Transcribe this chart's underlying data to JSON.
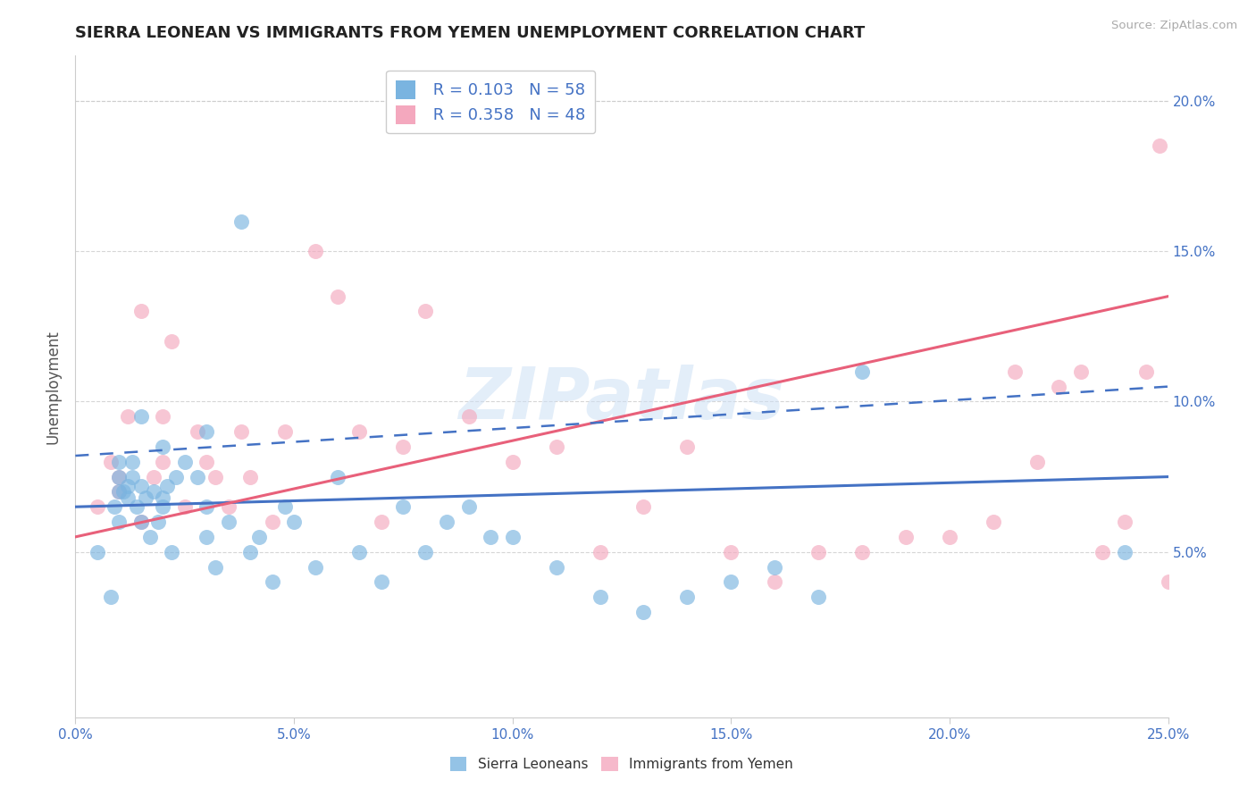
{
  "title": "SIERRA LEONEAN VS IMMIGRANTS FROM YEMEN UNEMPLOYMENT CORRELATION CHART",
  "source": "Source: ZipAtlas.com",
  "ylabel": "Unemployment",
  "xlim": [
    0.0,
    0.25
  ],
  "ylim": [
    -0.005,
    0.215
  ],
  "xticks": [
    0.0,
    0.05,
    0.1,
    0.15,
    0.2,
    0.25
  ],
  "xtick_labels": [
    "0.0%",
    "5.0%",
    "10.0%",
    "15.0%",
    "20.0%",
    "25.0%"
  ],
  "yticks": [
    0.05,
    0.1,
    0.15,
    0.2
  ],
  "ytick_labels": [
    "5.0%",
    "10.0%",
    "15.0%",
    "20.0%"
  ],
  "blue_color": "#7ab4e0",
  "pink_color": "#f4a8be",
  "blue_line_color": "#4472c4",
  "pink_line_color": "#e8607a",
  "legend_R_blue": "R = 0.103",
  "legend_N_blue": "N = 58",
  "legend_R_pink": "R = 0.358",
  "legend_N_pink": "N = 48",
  "watermark": "ZIPatlas",
  "blue_scatter_x": [
    0.005,
    0.008,
    0.009,
    0.01,
    0.01,
    0.01,
    0.01,
    0.011,
    0.012,
    0.012,
    0.013,
    0.013,
    0.014,
    0.015,
    0.015,
    0.015,
    0.016,
    0.017,
    0.018,
    0.019,
    0.02,
    0.02,
    0.02,
    0.021,
    0.022,
    0.023,
    0.025,
    0.028,
    0.03,
    0.03,
    0.03,
    0.032,
    0.035,
    0.038,
    0.04,
    0.042,
    0.045,
    0.048,
    0.05,
    0.055,
    0.06,
    0.065,
    0.07,
    0.075,
    0.08,
    0.085,
    0.09,
    0.095,
    0.1,
    0.11,
    0.12,
    0.13,
    0.14,
    0.15,
    0.16,
    0.17,
    0.18,
    0.24
  ],
  "blue_scatter_y": [
    0.05,
    0.035,
    0.065,
    0.07,
    0.06,
    0.075,
    0.08,
    0.07,
    0.072,
    0.068,
    0.075,
    0.08,
    0.065,
    0.06,
    0.072,
    0.095,
    0.068,
    0.055,
    0.07,
    0.06,
    0.065,
    0.085,
    0.068,
    0.072,
    0.05,
    0.075,
    0.08,
    0.075,
    0.065,
    0.055,
    0.09,
    0.045,
    0.06,
    0.16,
    0.05,
    0.055,
    0.04,
    0.065,
    0.06,
    0.045,
    0.075,
    0.05,
    0.04,
    0.065,
    0.05,
    0.06,
    0.065,
    0.055,
    0.055,
    0.045,
    0.035,
    0.03,
    0.035,
    0.04,
    0.045,
    0.035,
    0.11,
    0.05
  ],
  "pink_scatter_x": [
    0.005,
    0.008,
    0.01,
    0.01,
    0.012,
    0.015,
    0.015,
    0.018,
    0.02,
    0.02,
    0.022,
    0.025,
    0.028,
    0.03,
    0.032,
    0.035,
    0.038,
    0.04,
    0.045,
    0.048,
    0.055,
    0.06,
    0.065,
    0.07,
    0.075,
    0.08,
    0.09,
    0.1,
    0.11,
    0.12,
    0.13,
    0.14,
    0.15,
    0.16,
    0.17,
    0.18,
    0.19,
    0.2,
    0.21,
    0.215,
    0.22,
    0.225,
    0.23,
    0.235,
    0.24,
    0.245,
    0.248,
    0.25
  ],
  "pink_scatter_y": [
    0.065,
    0.08,
    0.07,
    0.075,
    0.095,
    0.06,
    0.13,
    0.075,
    0.08,
    0.095,
    0.12,
    0.065,
    0.09,
    0.08,
    0.075,
    0.065,
    0.09,
    0.075,
    0.06,
    0.09,
    0.15,
    0.135,
    0.09,
    0.06,
    0.085,
    0.13,
    0.095,
    0.08,
    0.085,
    0.05,
    0.065,
    0.085,
    0.05,
    0.04,
    0.05,
    0.05,
    0.055,
    0.055,
    0.06,
    0.11,
    0.08,
    0.105,
    0.11,
    0.05,
    0.06,
    0.11,
    0.185,
    0.04
  ],
  "background_color": "#ffffff",
  "grid_color": "#cccccc",
  "title_color": "#222222",
  "axis_label_color": "#555555",
  "tick_color": "#4472c4",
  "source_color": "#aaaaaa",
  "blue_trend": [
    0.065,
    0.075
  ],
  "pink_trend": [
    0.055,
    0.135
  ],
  "blue_dashed": [
    0.082,
    0.105
  ]
}
